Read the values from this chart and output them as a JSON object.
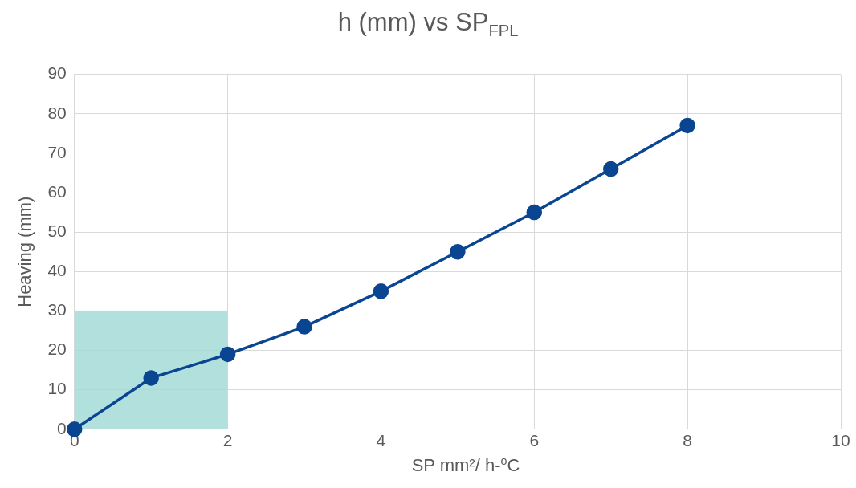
{
  "chart_data": {
    "type": "line",
    "title": "h (mm) vs SP$_{FPL}$",
    "xlabel": "SP mm²/ h-$^{o}$C",
    "ylabel": "Heaving (mm)",
    "series": [
      {
        "type": "area",
        "marker": "none",
        "color": "#9fdad5",
        "x": [
          0,
          2
        ],
        "values": [
          30,
          30
        ]
      },
      {
        "type": "line",
        "color": "#0a4591",
        "x": [
          0,
          1,
          2,
          3,
          4,
          5,
          6,
          7,
          8
        ],
        "values": [
          0,
          13,
          19,
          26,
          35,
          45,
          55,
          66,
          77
        ]
      }
    ],
    "xlim": [
      0,
      10
    ],
    "xticks": [
      0,
      2,
      4,
      6,
      8,
      10
    ],
    "ylim": [
      0,
      90
    ],
    "yticks": [
      0,
      10,
      20,
      30,
      40,
      50,
      60,
      70,
      80,
      90
    ],
    "grid": true,
    "legend": false,
    "marker": "circle",
    "line_style": "solid"
  }
}
